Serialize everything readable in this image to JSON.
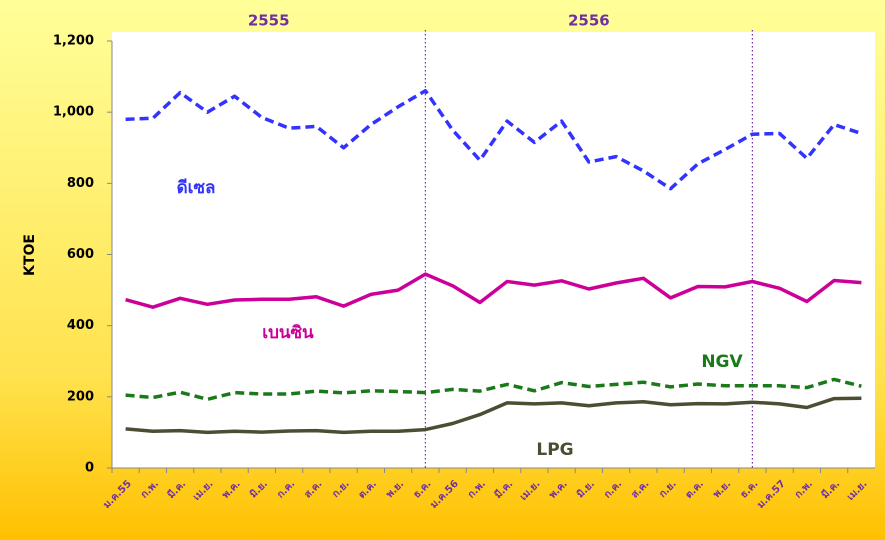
{
  "chart_data": {
    "type": "line",
    "y_label": "KTOE",
    "periods": [
      "2555",
      "2556"
    ],
    "categories": [
      "ม.ค.55",
      "ก.พ.",
      "มี.ค.",
      "เม.ย.",
      "พ.ค.",
      "มิ.ย.",
      "ก.ค.",
      "ส.ค.",
      "ก.ย.",
      "ต.ค.",
      "พ.ย.",
      "ธ.ค.",
      "ม.ค.56",
      "ก.พ.",
      "มี.ค.",
      "เม.ย.",
      "พ.ค.",
      "มิ.ย.",
      "ก.ค.",
      "ส.ค.",
      "ก.ย.",
      "ต.ค.",
      "พ.ย.",
      "ธ.ค.",
      "ม.ค.57",
      "ก.พ.",
      "มี.ค.",
      "เม.ย."
    ],
    "series": [
      {
        "name": "ดีเซล",
        "color": "#3333ff",
        "dashed": true,
        "values": [
          980,
          983,
          1055,
          1000,
          1045,
          985,
          955,
          960,
          900,
          965,
          1015,
          1060,
          950,
          865,
          975,
          915,
          975,
          860,
          875,
          835,
          785,
          855,
          895,
          938,
          940,
          870,
          965,
          940
        ]
      },
      {
        "name": "เบนซิน",
        "color": "#cc0099",
        "dashed": false,
        "values": [
          473,
          452,
          477,
          460,
          472,
          474,
          474,
          481,
          455,
          488,
          500,
          545,
          512,
          465,
          524,
          514,
          526,
          503,
          520,
          533,
          478,
          510,
          509,
          524,
          505,
          468,
          527,
          521
        ]
      },
      {
        "name": "NGV",
        "color": "#1a7a1a",
        "dashed": true,
        "values": [
          205,
          198,
          213,
          193,
          212,
          208,
          208,
          216,
          211,
          217,
          215,
          212,
          221,
          216,
          235,
          217,
          240,
          229,
          235,
          241,
          228,
          236,
          231,
          231,
          231,
          226,
          249,
          230
        ]
      },
      {
        "name": "LPG",
        "color": "#4d4d33",
        "dashed": false,
        "values": [
          110,
          103,
          105,
          100,
          103,
          101,
          104,
          105,
          100,
          103,
          103,
          108,
          125,
          150,
          183,
          180,
          183,
          175,
          183,
          186,
          178,
          181,
          180,
          185,
          180,
          170,
          195,
          196
        ]
      }
    ],
    "ylim": [
      0,
      1200
    ],
    "yticks": [
      0,
      200,
      400,
      600,
      800,
      {
        "value": 1000,
        "label": "1,000"
      },
      {
        "value": 1200,
        "label": "1,200"
      }
    ]
  }
}
